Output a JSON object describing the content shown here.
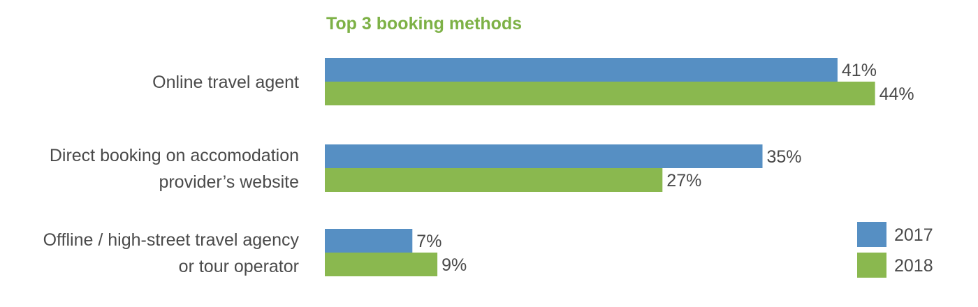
{
  "chart_data": {
    "type": "bar",
    "orientation": "horizontal",
    "title": "Top 3 booking methods",
    "categories": [
      [
        "Online travel agent"
      ],
      [
        "Direct booking on accomodation",
        "provider’s website"
      ],
      [
        "Offline / high-street travel agency",
        "or tour operator"
      ]
    ],
    "series": [
      {
        "name": "2017",
        "color": "#568fc3",
        "values": [
          41,
          35,
          7
        ],
        "labels": [
          "41%",
          "35%",
          "7%"
        ]
      },
      {
        "name": "2018",
        "color": "#8ab84f",
        "values": [
          44,
          27,
          9
        ],
        "labels": [
          "44%",
          "27%",
          "9%"
        ]
      }
    ],
    "xlim": [
      0,
      50
    ],
    "grid": false,
    "legend_position": "bottom-right"
  }
}
